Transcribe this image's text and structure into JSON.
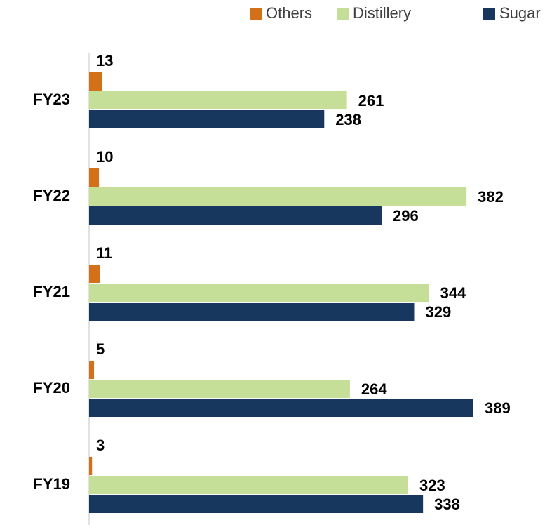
{
  "chart_data": {
    "type": "bar",
    "orientation": "horizontal",
    "categories": [
      "FY23",
      "FY22",
      "FY21",
      "FY20",
      "FY19"
    ],
    "series": [
      {
        "name": "Others",
        "color": "#d4701a",
        "values": [
          13,
          10,
          11,
          5,
          3
        ]
      },
      {
        "name": "Distillery",
        "color": "#c6df98",
        "values": [
          261,
          382,
          344,
          264,
          323
        ]
      },
      {
        "name": "Sugar",
        "color": "#17375e",
        "values": [
          238,
          296,
          329,
          389,
          338
        ]
      }
    ],
    "legend": "top-right"
  }
}
